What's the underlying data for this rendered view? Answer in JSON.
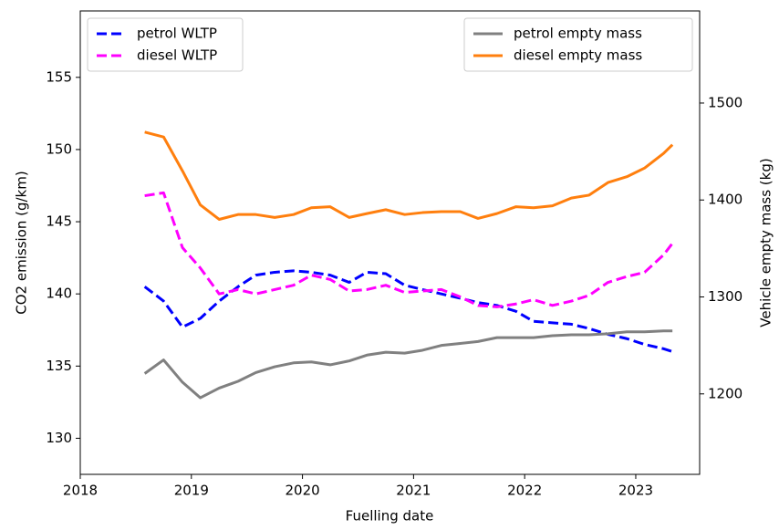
{
  "chart_data": {
    "type": "line",
    "xlabel": "Fuelling date",
    "ylabel": "CO2 emission (g/km)",
    "y2label": "Vehicle empty mass (kg)",
    "x": [
      2018.58,
      2018.75,
      2018.92,
      2019.08,
      2019.25,
      2019.42,
      2019.58,
      2019.75,
      2019.92,
      2020.08,
      2020.25,
      2020.42,
      2020.58,
      2020.75,
      2020.92,
      2021.08,
      2021.25,
      2021.42,
      2021.58,
      2021.75,
      2021.92,
      2022.08,
      2022.25,
      2022.42,
      2022.58,
      2022.75,
      2022.92,
      2023.08,
      2023.25,
      2023.33
    ],
    "xlim": [
      2018,
      2023.575
    ],
    "xticks": [
      2018,
      2019,
      2020,
      2021,
      2022,
      2023
    ],
    "ylim": [
      127.5,
      159.6
    ],
    "yticks": [
      130,
      135,
      140,
      145,
      150,
      155
    ],
    "y2lim": [
      1117,
      1595
    ],
    "y2ticks": [
      1200,
      1300,
      1400,
      1500
    ],
    "series": [
      {
        "name": "petrol WLTP",
        "color": "#0000ff",
        "dash": true,
        "legend": "upper left",
        "values": [
          140.5,
          139.5,
          137.7,
          138.3,
          139.5,
          140.5,
          141.3,
          141.5,
          141.6,
          141.5,
          141.3,
          140.8,
          141.5,
          141.4,
          140.6,
          140.3,
          140.0,
          139.7,
          139.4,
          139.2,
          138.8,
          138.1,
          138.0,
          137.9,
          137.6,
          137.2,
          136.9,
          136.5,
          136.2,
          136.0
        ]
      },
      {
        "name": "diesel WLTP",
        "color": "#ff00ff",
        "dash": true,
        "legend": "upper left",
        "values": [
          146.8,
          147.0,
          143.2,
          141.8,
          140.0,
          140.3,
          140.0,
          140.3,
          140.6,
          141.3,
          141.0,
          140.2,
          140.3,
          140.6,
          140.1,
          140.2,
          140.3,
          139.8,
          139.2,
          139.1,
          139.3,
          139.6,
          139.2,
          139.5,
          139.9,
          140.8,
          141.2,
          141.5,
          142.7,
          143.5
        ]
      },
      {
        "name": "petrol empty mass",
        "color": "#808080",
        "dash": false,
        "axis": "y2",
        "legend": "upper right",
        "values": [
          1221,
          1235,
          1212,
          1196,
          1206,
          1213,
          1222,
          1228,
          1232,
          1233,
          1230,
          1234,
          1240,
          1243,
          1242,
          1245,
          1250,
          1252,
          1254,
          1258,
          1258,
          1258,
          1260,
          1261,
          1261,
          1262,
          1264,
          1264,
          1265,
          1265
        ]
      },
      {
        "name": "diesel empty mass",
        "color": "#ff7f0e",
        "dash": false,
        "axis": "y2",
        "legend": "upper right",
        "values": [
          1470,
          1465,
          1430,
          1395,
          1380,
          1385,
          1385,
          1382,
          1385,
          1392,
          1393,
          1382,
          1386,
          1390,
          1385,
          1387,
          1388,
          1388,
          1381,
          1386,
          1393,
          1392,
          1394,
          1402,
          1405,
          1418,
          1424,
          1433,
          1448,
          1457
        ]
      }
    ]
  }
}
